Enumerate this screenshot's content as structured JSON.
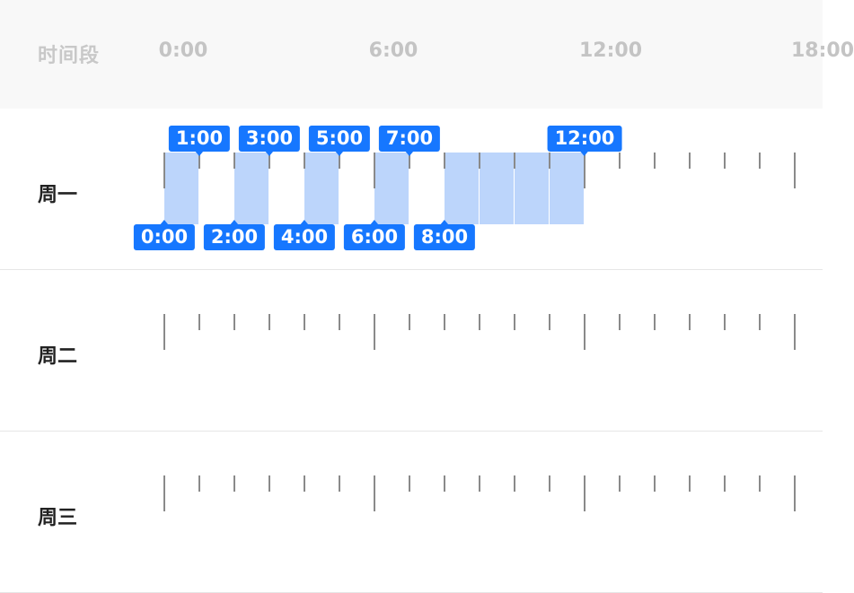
{
  "header": {
    "label": "时间段",
    "hours": [
      "0:00",
      "6:00",
      "12:00",
      "18:00"
    ]
  },
  "days": [
    {
      "label": "周一",
      "selected_hours": [
        0,
        2,
        4,
        6,
        8,
        9,
        10,
        11
      ],
      "top_tags": [
        "1:00",
        "3:00",
        "5:00",
        "7:00",
        "12:00"
      ],
      "bottom_tags": [
        "0:00",
        "2:00",
        "4:00",
        "6:00",
        "8:00"
      ]
    },
    {
      "label": "周二",
      "selected_hours": [],
      "top_tags": [],
      "bottom_tags": []
    },
    {
      "label": "周三",
      "selected_hours": [],
      "top_tags": [],
      "bottom_tags": []
    }
  ],
  "colors": {
    "selected_slot": "#bcd5fb",
    "tag": "#1677ff",
    "tick": "#8a8a8a"
  }
}
